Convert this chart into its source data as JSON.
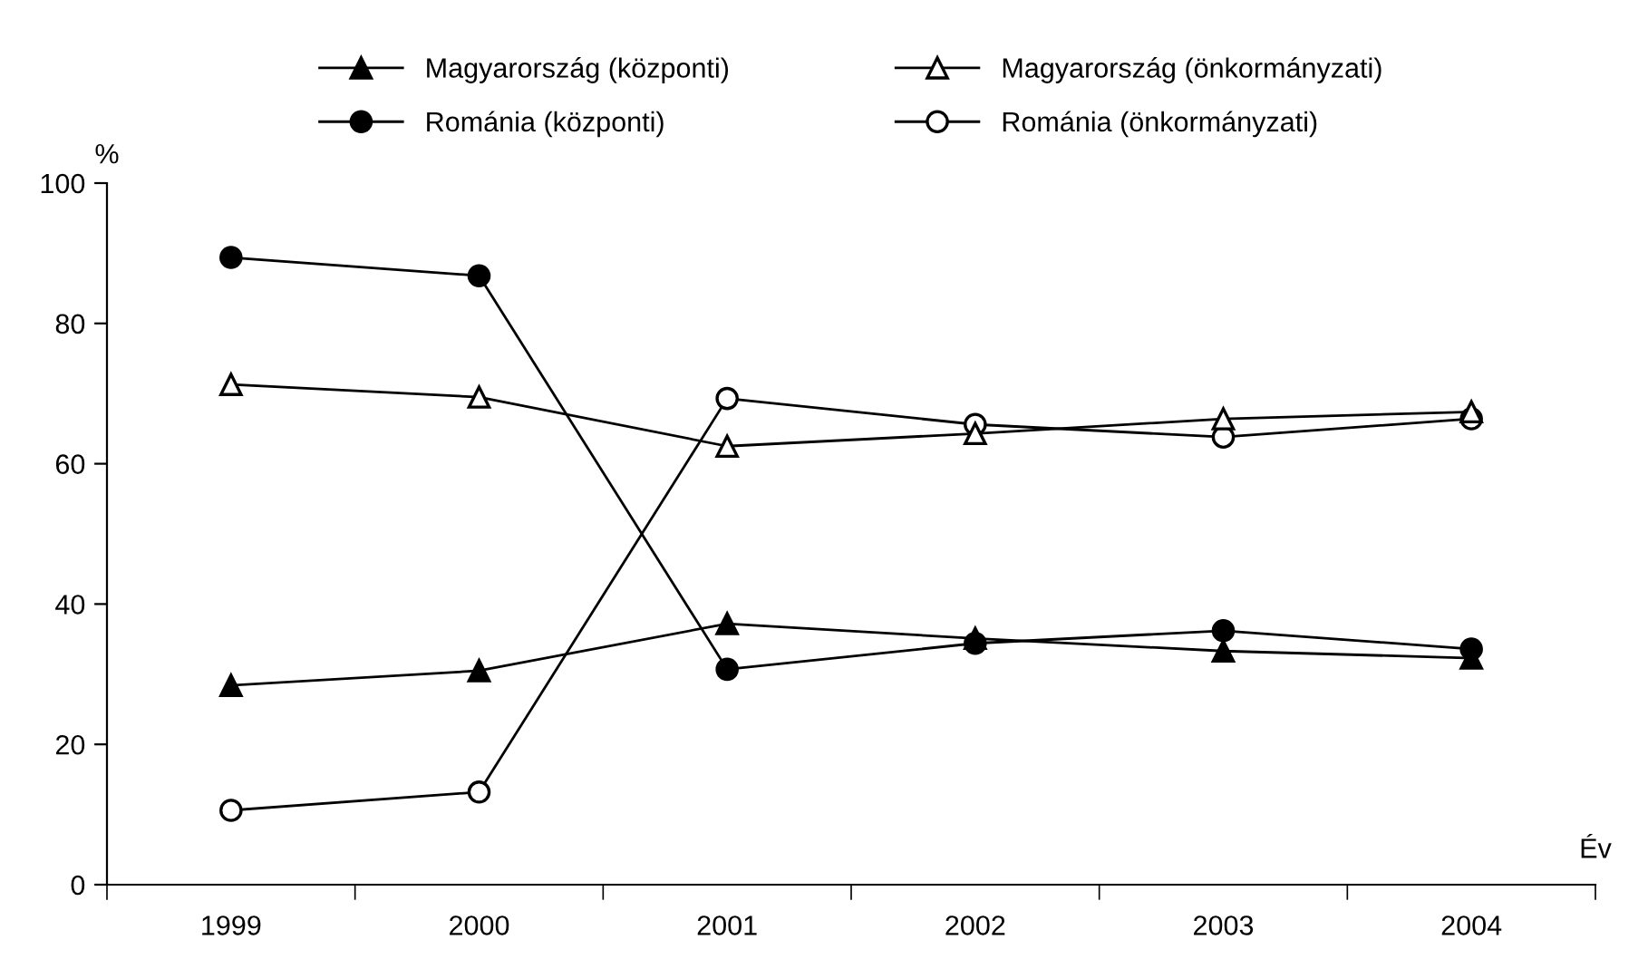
{
  "chart_data": {
    "type": "line",
    "ylabel": "%",
    "xlabel": "Év",
    "categories": [
      "1999",
      "2000",
      "2001",
      "2002",
      "2003",
      "2004"
    ],
    "series": [
      {
        "name": "Magyarország (központi)",
        "color": "#000000",
        "marker": "triangle",
        "values": [
          28.4,
          30.5,
          37.2,
          35.1,
          33.3,
          32.3
        ]
      },
      {
        "name": "Magyarország (önkormányzati)",
        "color": "#000000",
        "marker": "triangle",
        "values": [
          71.3,
          69.5,
          62.5,
          64.3,
          66.4,
          67.4
        ]
      },
      {
        "name": "Románia (központi)",
        "color": "#000000",
        "marker": "circle",
        "values": [
          89.4,
          86.8,
          30.7,
          34.4,
          36.2,
          33.6
        ]
      },
      {
        "name": "Románia (önkormányzati)",
        "color": "#000000",
        "marker": "circle",
        "values": [
          10.6,
          13.2,
          69.3,
          65.6,
          63.8,
          66.4
        ]
      }
    ],
    "ylim": [
      0,
      100
    ],
    "yticks": [
      0,
      20,
      40,
      60,
      80,
      100
    ],
    "grid": false,
    "legend": "top",
    "line_style": "solid"
  }
}
